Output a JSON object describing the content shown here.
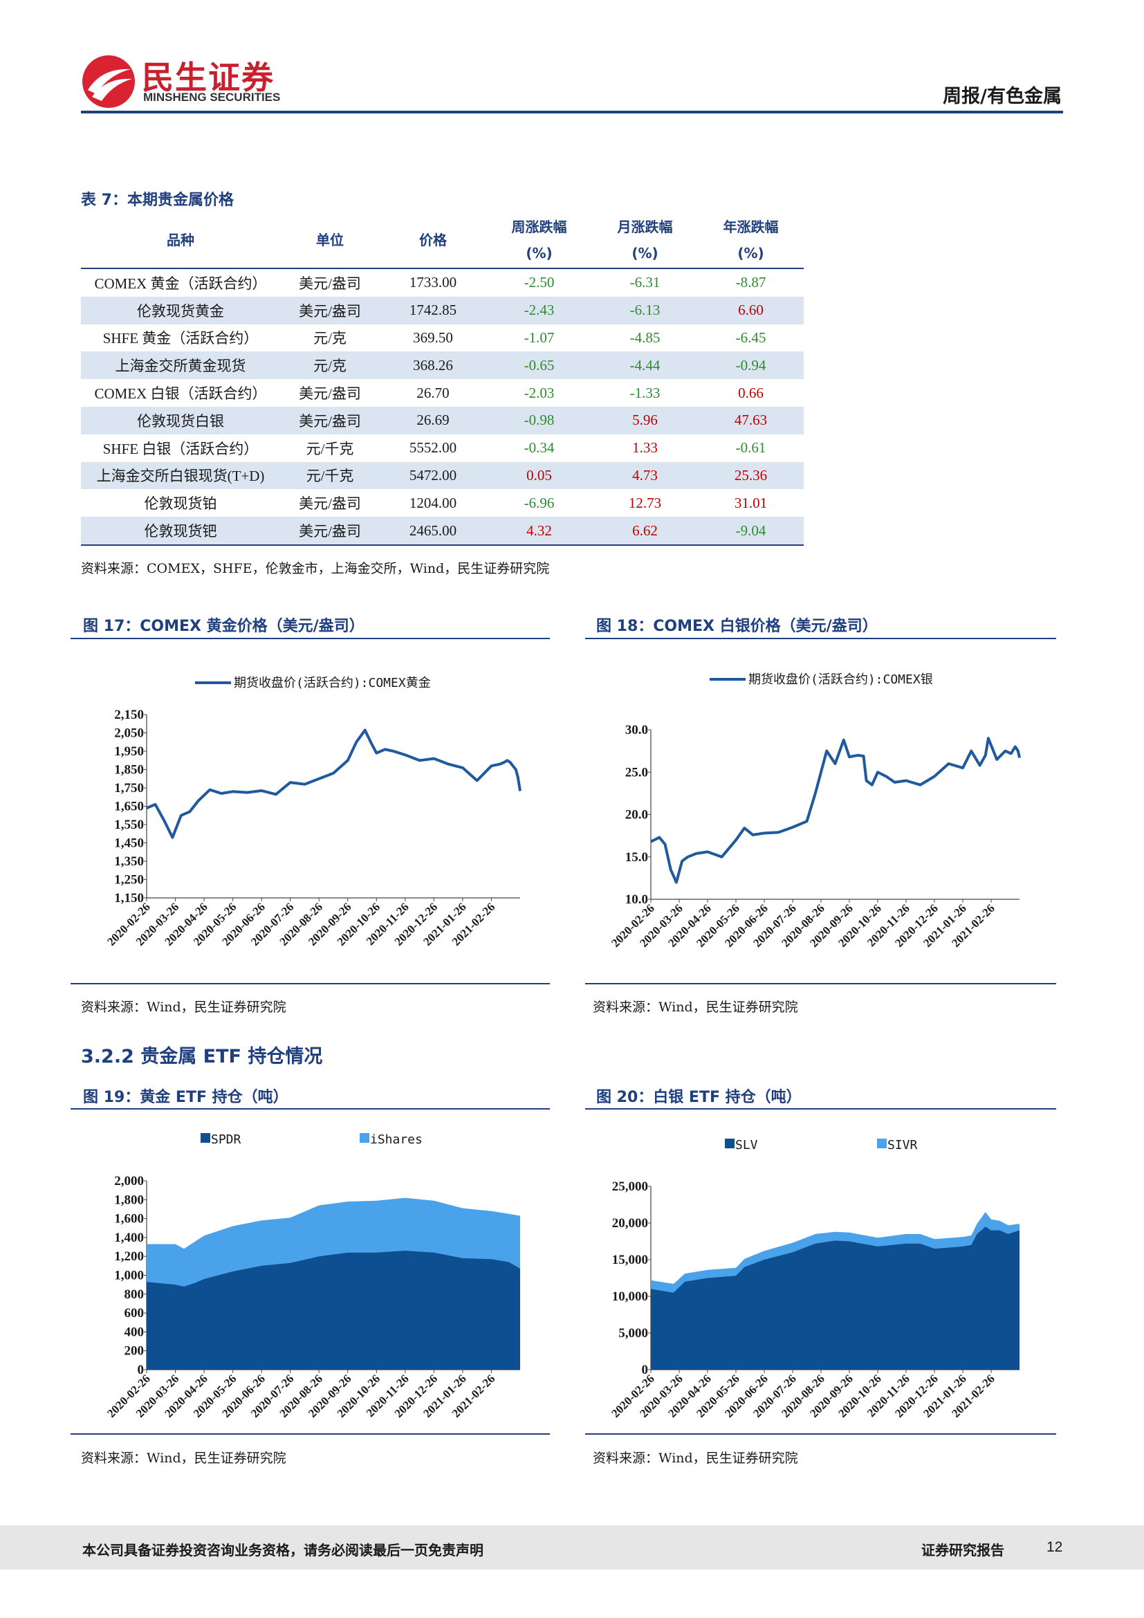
{
  "header": {
    "logo_cn": "民生证券",
    "logo_en": "MINSHENG SECURITIES",
    "section": "周报/有色金属"
  },
  "table7": {
    "caption": "表 7：本期贵金属价格",
    "headers": [
      "品种",
      "单位",
      "价格",
      "周涨跌幅",
      "月涨跌幅",
      "年涨跌幅"
    ],
    "pct_unit": "(%)",
    "rows": [
      [
        "COMEX 黄金（活跃合约）",
        "美元/盎司",
        "1733.00",
        "-2.50",
        "-6.31",
        "-8.87"
      ],
      [
        "伦敦现货黄金",
        "美元/盎司",
        "1742.85",
        "-2.43",
        "-6.13",
        "6.60"
      ],
      [
        "SHFE 黄金（活跃合约）",
        "元/克",
        "369.50",
        "-1.07",
        "-4.85",
        "-6.45"
      ],
      [
        "上海金交所黄金现货",
        "元/克",
        "368.26",
        "-0.65",
        "-4.44",
        "-0.94"
      ],
      [
        "COMEX 白银（活跃合约）",
        "美元/盎司",
        "26.70",
        "-2.03",
        "-1.33",
        "0.66"
      ],
      [
        "伦敦现货白银",
        "美元/盎司",
        "26.69",
        "-0.98",
        "5.96",
        "47.63"
      ],
      [
        "SHFE 白银（活跃合约）",
        "元/千克",
        "5552.00",
        "-0.34",
        "1.33",
        "-0.61"
      ],
      [
        "上海金交所白银现货(T+D)",
        "元/千克",
        "5472.00",
        "0.05",
        "4.73",
        "25.36"
      ],
      [
        "伦敦现货铂",
        "美元/盎司",
        "1204.00",
        "-6.96",
        "12.73",
        "31.01"
      ],
      [
        "伦敦现货钯",
        "美元/盎司",
        "2465.00",
        "4.32",
        "6.62",
        "-9.04"
      ]
    ],
    "source": "资料来源：COMEX，SHFE，伦敦金市，上海金交所，Wind，民生证券研究院"
  },
  "section_heading": "3.2.2 贵金属 ETF 持仓情况",
  "fig17": {
    "caption": "图 17：COMEX 黄金价格（美元/盎司）",
    "source": "资料来源：Wind，民生证券研究院"
  },
  "fig18": {
    "caption": "图 18：COMEX 白银价格（美元/盎司）",
    "source": "资料来源：Wind，民生证券研究院"
  },
  "fig19": {
    "caption": "图 19：黄金 ETF 持仓（吨）",
    "source": "资料来源：Wind，民生证券研究院"
  },
  "fig20": {
    "caption": "图 20：白银 ETF 持仓（吨）",
    "source": "资料来源：Wind，民生证券研究院"
  },
  "footer": {
    "disclaimer": "本公司具备证券投资咨询业务资格，请务必阅读最后一页免责声明",
    "report_type": "证券研究报告",
    "page": "12"
  },
  "colors": {
    "brand_blue": "#1f3f7f",
    "line_blue": "#1f5a9e",
    "dark_area": "#0d4f91",
    "light_area": "#4aa3ea",
    "negative": "#2e8b2e",
    "positive": "#c00000"
  },
  "chart_data": [
    {
      "id": "fig17",
      "type": "line",
      "legend": [
        "期货收盘价(活跃合约):COMEX黄金"
      ],
      "x_ticks": [
        "2020-02-26",
        "2020-03-26",
        "2020-04-26",
        "2020-05-26",
        "2020-06-26",
        "2020-07-26",
        "2020-08-26",
        "2020-09-26",
        "2020-10-26",
        "2020-11-26",
        "2020-12-26",
        "2021-01-26",
        "2021-02-26"
      ],
      "y_ticks": [
        "2,150",
        "2,050",
        "1,950",
        "1,850",
        "1,750",
        "1,650",
        "1,550",
        "1,450",
        "1,350",
        "1,250",
        "1,150"
      ],
      "ylim": [
        1150,
        2150
      ],
      "series": [
        {
          "name": "期货收盘价(活跃合约):COMEX黄金",
          "x": [
            0,
            0.3,
            0.6,
            0.9,
            1.2,
            1.5,
            1.8,
            2.2,
            2.6,
            3,
            3.5,
            4,
            4.5,
            5,
            5.5,
            6,
            6.5,
            7,
            7.3,
            7.6,
            7.8,
            8,
            8.3,
            8.6,
            9,
            9.5,
            10,
            10.5,
            11,
            11.5,
            12,
            12.3,
            12.45,
            12.55,
            12.65,
            12.75,
            12.85,
            12.92,
            13
          ],
          "values": [
            1640,
            1660,
            1575,
            1480,
            1600,
            1620,
            1680,
            1740,
            1720,
            1730,
            1725,
            1735,
            1715,
            1780,
            1770,
            1800,
            1830,
            1900,
            2000,
            2065,
            2000,
            1940,
            1960,
            1950,
            1930,
            1900,
            1910,
            1880,
            1860,
            1790,
            1870,
            1880,
            1890,
            1900,
            1890,
            1870,
            1850,
            1810,
            1733
          ]
        }
      ]
    },
    {
      "id": "fig18",
      "type": "line",
      "legend": [
        "期货收盘价(活跃合约):COMEX银"
      ],
      "x_ticks": [
        "2020-02-26",
        "2020-03-26",
        "2020-04-26",
        "2020-05-26",
        "2020-06-26",
        "2020-07-26",
        "2020-08-26",
        "2020-09-26",
        "2020-10-26",
        "2020-11-26",
        "2020-12-26",
        "2021-01-26",
        "2021-02-26"
      ],
      "y_ticks": [
        "30.0",
        "25.0",
        "20.0",
        "15.0",
        "10.0"
      ],
      "ylim": [
        10,
        30
      ],
      "series": [
        {
          "name": "期货收盘价(活跃合约):COMEX银",
          "x": [
            0,
            0.3,
            0.5,
            0.7,
            0.9,
            1.1,
            1.3,
            1.6,
            2,
            2.5,
            3,
            3.3,
            3.6,
            4,
            4.5,
            5,
            5.5,
            5.8,
            6,
            6.2,
            6.5,
            6.8,
            7,
            7.3,
            7.5,
            7.6,
            7.8,
            8,
            8.3,
            8.6,
            9,
            9.5,
            10,
            10.5,
            11,
            11.3,
            11.6,
            11.8,
            11.9,
            12.2,
            12.5,
            12.7,
            12.85,
            12.95,
            13
          ],
          "values": [
            16.8,
            17.3,
            16.5,
            13.5,
            12.0,
            14.5,
            15.0,
            15.4,
            15.6,
            15.0,
            17.0,
            18.4,
            17.6,
            17.8,
            17.9,
            18.5,
            19.2,
            22.5,
            25.0,
            27.5,
            26.0,
            28.8,
            26.8,
            27.0,
            26.9,
            24.0,
            23.5,
            25.0,
            24.5,
            23.8,
            24.0,
            23.5,
            24.5,
            26.0,
            25.5,
            27.5,
            25.8,
            27.0,
            29.0,
            26.5,
            27.5,
            27.2,
            28.0,
            27.5,
            26.7
          ]
        }
      ]
    },
    {
      "id": "fig19",
      "type": "area",
      "stacked": true,
      "legend": [
        "SPDR",
        "iShares"
      ],
      "x_ticks": [
        "2020-02-26",
        "2020-03-26",
        "2020-04-26",
        "2020-05-26",
        "2020-06-26",
        "2020-07-26",
        "2020-08-26",
        "2020-09-26",
        "2020-10-26",
        "2020-11-26",
        "2020-12-26",
        "2021-01-26",
        "2021-02-26"
      ],
      "y_ticks": [
        "2,000",
        "1,800",
        "1,600",
        "1,400",
        "1,200",
        "1,000",
        "800",
        "600",
        "400",
        "200",
        "0"
      ],
      "ylim": [
        0,
        2000
      ],
      "x": [
        0,
        1,
        1.3,
        1.7,
        2,
        3,
        4,
        5,
        6,
        7,
        8,
        9,
        10,
        11,
        12,
        12.6,
        13
      ],
      "series": [
        {
          "name": "SPDR",
          "values": [
            930,
            900,
            880,
            920,
            960,
            1040,
            1100,
            1130,
            1200,
            1240,
            1240,
            1260,
            1240,
            1180,
            1170,
            1140,
            1070
          ]
        },
        {
          "name": "iShares",
          "values": [
            400,
            430,
            400,
            440,
            460,
            480,
            480,
            480,
            540,
            540,
            550,
            560,
            550,
            530,
            510,
            510,
            560
          ]
        }
      ]
    },
    {
      "id": "fig20",
      "type": "area",
      "stacked": true,
      "legend": [
        "SLV",
        "SIVR"
      ],
      "x_ticks": [
        "2020-02-26",
        "2020-03-26",
        "2020-04-26",
        "2020-05-26",
        "2020-06-26",
        "2020-07-26",
        "2020-08-26",
        "2020-09-26",
        "2020-10-26",
        "2020-11-26",
        "2020-12-26",
        "2021-01-26",
        "2021-02-26"
      ],
      "y_ticks": [
        "25,000",
        "20,000",
        "15,000",
        "10,000",
        "5,000",
        "0"
      ],
      "ylim": [
        0,
        25000
      ],
      "x": [
        0,
        0.8,
        1.2,
        2,
        3,
        3.3,
        4,
        5,
        5.8,
        6.5,
        7,
        8,
        9,
        9.5,
        10,
        11,
        11.3,
        11.5,
        11.8,
        12,
        12.3,
        12.6,
        13
      ],
      "series": [
        {
          "name": "SLV",
          "values": [
            11000,
            10500,
            12000,
            12500,
            12800,
            14000,
            15000,
            16000,
            17200,
            17600,
            17500,
            16800,
            17200,
            17200,
            16500,
            16800,
            17000,
            18500,
            19500,
            19000,
            19000,
            18500,
            19000
          ]
        },
        {
          "name": "SIVR",
          "values": [
            1200,
            1200,
            1100,
            1100,
            1100,
            1100,
            1200,
            1300,
            1300,
            1200,
            1200,
            1200,
            1300,
            1300,
            1300,
            1300,
            1300,
            1400,
            2000,
            1500,
            1300,
            1200,
            900
          ]
        }
      ]
    }
  ]
}
